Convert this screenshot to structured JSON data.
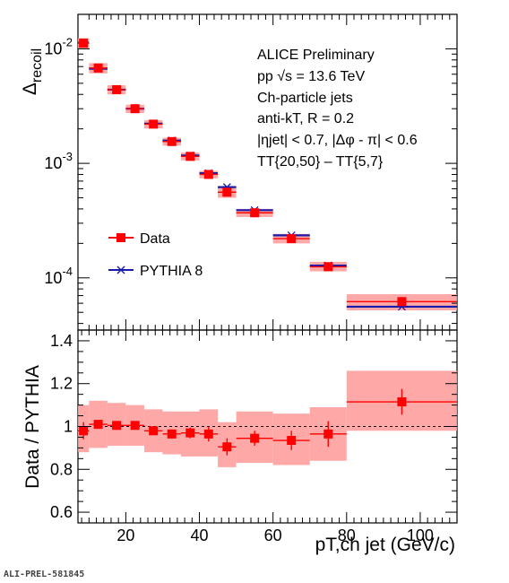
{
  "chart_data": [
    {
      "type": "scatter",
      "panel": "top",
      "ylabel": "Δrecoil",
      "yscale": "log",
      "ylim": [
        3.5e-05,
        0.02
      ],
      "xlim": [
        7,
        110
      ],
      "ytick_labels": [
        {
          "value": 0.01,
          "base": "10",
          "exp": "-2"
        },
        {
          "value": 0.001,
          "base": "10",
          "exp": "-3"
        },
        {
          "value": 0.0001,
          "base": "10",
          "exp": "-4"
        }
      ],
      "annotations": [
        "ALICE Preliminary",
        "pp √s = 13.6 TeV",
        "Ch-particle jets",
        "anti-kT, R = 0.2",
        "|ηjet| < 0.7, |Δφ - π| < 0.6",
        "TT{20,50} – TT{5,7}"
      ],
      "legend_position": "left",
      "series": [
        {
          "name": "Data",
          "color": "#ff0000",
          "band_color": "#ff9999",
          "points": [
            {
              "x": 8.5,
              "xlo": 7,
              "xhi": 10,
              "y": 0.0112,
              "band": [
                0.01,
                0.0124
              ]
            },
            {
              "x": 12.5,
              "xlo": 10,
              "xhi": 15,
              "y": 0.0068,
              "band": [
                0.0061,
                0.0075
              ]
            },
            {
              "x": 17.5,
              "xlo": 15,
              "xhi": 20,
              "y": 0.0044,
              "band": [
                0.004,
                0.0048
              ]
            },
            {
              "x": 22.5,
              "xlo": 20,
              "xhi": 25,
              "y": 0.003,
              "band": [
                0.00275,
                0.00325
              ]
            },
            {
              "x": 27.5,
              "xlo": 25,
              "xhi": 30,
              "y": 0.0022,
              "band": [
                0.00202,
                0.00238
              ]
            },
            {
              "x": 32.5,
              "xlo": 30,
              "xhi": 35,
              "y": 0.00155,
              "band": [
                0.00143,
                0.00167
              ]
            },
            {
              "x": 37.5,
              "xlo": 35,
              "xhi": 40,
              "y": 0.00115,
              "band": [
                0.00106,
                0.00124
              ]
            },
            {
              "x": 42.5,
              "xlo": 40,
              "xhi": 45,
              "y": 0.0008,
              "band": [
                0.00074,
                0.00086
              ]
            },
            {
              "x": 47.5,
              "xlo": 45,
              "xhi": 50,
              "y": 0.00056,
              "band": [
                0.0005,
                0.00063
              ]
            },
            {
              "x": 55,
              "xlo": 50,
              "xhi": 60,
              "y": 0.00037,
              "band": [
                0.00034,
                0.0004
              ]
            },
            {
              "x": 65,
              "xlo": 60,
              "xhi": 70,
              "y": 0.00022,
              "band": [
                0.0002,
                0.000242
              ]
            },
            {
              "x": 75,
              "xlo": 70,
              "xhi": 80,
              "y": 0.000125,
              "band": [
                0.000114,
                0.000138
              ]
            },
            {
              "x": 95,
              "xlo": 80,
              "xhi": 110,
              "y": 6.2e-05,
              "band": [
                5.2e-05,
                7.2e-05
              ]
            }
          ]
        },
        {
          "name": "PYTHIA 8",
          "color": "#1a1aaa",
          "points": [
            {
              "x": 8.5,
              "xlo": 7,
              "xhi": 10,
              "y": 0.0113
            },
            {
              "x": 12.5,
              "xlo": 10,
              "xhi": 15,
              "y": 0.0067
            },
            {
              "x": 17.5,
              "xlo": 15,
              "xhi": 20,
              "y": 0.0044
            },
            {
              "x": 22.5,
              "xlo": 20,
              "xhi": 25,
              "y": 0.003
            },
            {
              "x": 27.5,
              "xlo": 25,
              "xhi": 30,
              "y": 0.00222
            },
            {
              "x": 32.5,
              "xlo": 30,
              "xhi": 35,
              "y": 0.00158
            },
            {
              "x": 37.5,
              "xlo": 35,
              "xhi": 40,
              "y": 0.00117
            },
            {
              "x": 42.5,
              "xlo": 40,
              "xhi": 45,
              "y": 0.00082
            },
            {
              "x": 47.5,
              "xlo": 45,
              "xhi": 50,
              "y": 0.00062
            },
            {
              "x": 55,
              "xlo": 50,
              "xhi": 60,
              "y": 0.00039
            },
            {
              "x": 65,
              "xlo": 60,
              "xhi": 70,
              "y": 0.000235
            },
            {
              "x": 75,
              "xlo": 70,
              "xhi": 80,
              "y": 0.000128
            },
            {
              "x": 95,
              "xlo": 80,
              "xhi": 110,
              "y": 5.6e-05
            }
          ]
        }
      ]
    },
    {
      "type": "scatter",
      "panel": "bottom",
      "ylabel": "Data / PYTHIA",
      "xlabel": "pT,ch jet (GeV/c)",
      "xlim": [
        7,
        110
      ],
      "ylim": [
        0.55,
        1.45
      ],
      "yticks": [
        0.6,
        0.8,
        1,
        1.2,
        1.4
      ],
      "ytick_labels": [
        "0.6",
        "0.8",
        "1",
        "1.2",
        "1.4"
      ],
      "xticks": [
        20,
        40,
        60,
        80,
        100
      ],
      "xtick_labels": [
        "20",
        "40",
        "60",
        "80",
        "100"
      ],
      "reference_line": 1,
      "series": [
        {
          "name": "Data",
          "color": "#ff0000",
          "band_color": "#ff9999",
          "points": [
            {
              "x": 8.5,
              "xlo": 7,
              "xhi": 10,
              "y": 0.98,
              "err": 0.04,
              "band": [
                0.88,
                1.1
              ]
            },
            {
              "x": 12.5,
              "xlo": 10,
              "xhi": 15,
              "y": 1.01,
              "err": 0.02,
              "band": [
                0.9,
                1.12
              ]
            },
            {
              "x": 17.5,
              "xlo": 15,
              "xhi": 20,
              "y": 1.005,
              "err": 0.015,
              "band": [
                0.91,
                1.11
              ]
            },
            {
              "x": 22.5,
              "xlo": 20,
              "xhi": 25,
              "y": 1.005,
              "err": 0.015,
              "band": [
                0.91,
                1.1
              ]
            },
            {
              "x": 27.5,
              "xlo": 25,
              "xhi": 30,
              "y": 0.98,
              "err": 0.015,
              "band": [
                0.88,
                1.08
              ]
            },
            {
              "x": 32.5,
              "xlo": 30,
              "xhi": 35,
              "y": 0.965,
              "err": 0.02,
              "band": [
                0.87,
                1.07
              ]
            },
            {
              "x": 37.5,
              "xlo": 35,
              "xhi": 40,
              "y": 0.97,
              "err": 0.025,
              "band": [
                0.86,
                1.07
              ]
            },
            {
              "x": 42.5,
              "xlo": 40,
              "xhi": 45,
              "y": 0.965,
              "err": 0.035,
              "band": [
                0.86,
                1.08
              ]
            },
            {
              "x": 47.5,
              "xlo": 45,
              "xhi": 50,
              "y": 0.905,
              "err": 0.04,
              "band": [
                0.81,
                1.02
              ]
            },
            {
              "x": 55,
              "xlo": 50,
              "xhi": 60,
              "y": 0.945,
              "err": 0.035,
              "band": [
                0.83,
                1.07
              ]
            },
            {
              "x": 65,
              "xlo": 60,
              "xhi": 70,
              "y": 0.935,
              "err": 0.045,
              "band": [
                0.82,
                1.06
              ]
            },
            {
              "x": 75,
              "xlo": 70,
              "xhi": 80,
              "y": 0.965,
              "err": 0.06,
              "band": [
                0.84,
                1.09
              ]
            },
            {
              "x": 95,
              "xlo": 80,
              "xhi": 110,
              "y": 1.115,
              "err": 0.06,
              "band": [
                0.98,
                1.26
              ]
            }
          ]
        }
      ]
    }
  ],
  "footer": "ALI-PREL-581845"
}
